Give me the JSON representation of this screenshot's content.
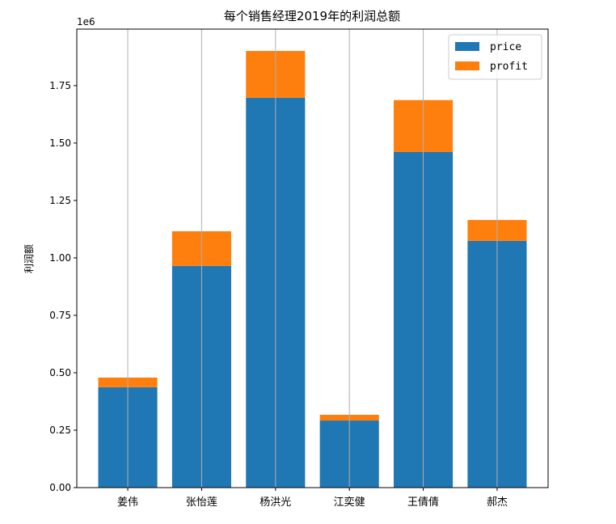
{
  "chart_data": {
    "type": "bar",
    "stacked": true,
    "title": "每个销售经理2019年的利润总额",
    "xlabel": "",
    "ylabel": "利润额",
    "offset_label": "1e6",
    "categories": [
      "姜伟",
      "张怡莲",
      "杨洪光",
      "江奕健",
      "王倩倩",
      "郝杰"
    ],
    "series": [
      {
        "name": "price",
        "color": "#1f77b4",
        "values": [
          437000,
          965000,
          1697000,
          292000,
          1461000,
          1074000
        ]
      },
      {
        "name": "profit",
        "color": "#ff7f0e",
        "values": [
          42000,
          151000,
          204000,
          25000,
          226000,
          91000
        ]
      }
    ],
    "ylim": [
      0,
      1996000
    ],
    "yticks": [
      0,
      250000,
      500000,
      750000,
      1000000,
      1250000,
      1500000,
      1750000
    ],
    "ytick_labels": [
      "0.00",
      "0.25",
      "0.50",
      "0.75",
      "1.00",
      "1.25",
      "1.50",
      "1.75"
    ],
    "grid": "x",
    "legend": "top-right"
  }
}
